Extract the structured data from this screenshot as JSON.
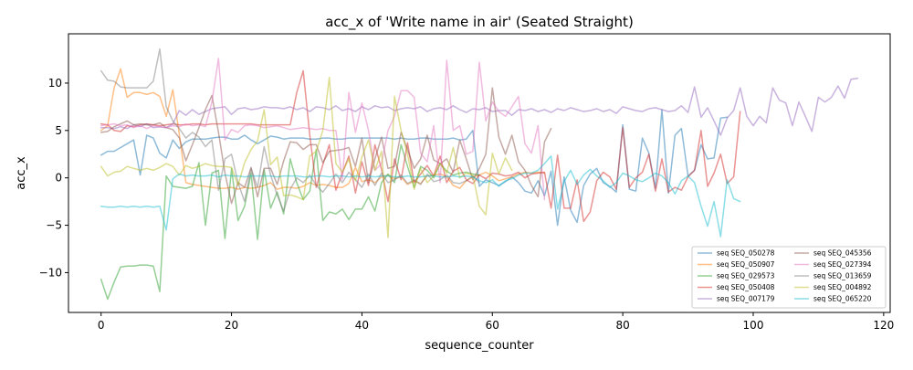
{
  "chart_data": {
    "type": "line",
    "title": "acc_x of 'Write name in air' (Seated Straight)",
    "xlabel": "sequence_counter",
    "ylabel": "acc_x",
    "xlim": [
      -5,
      121
    ],
    "ylim": [
      -14.2,
      15.2
    ],
    "xticks": [
      0,
      20,
      40,
      60,
      80,
      100,
      120
    ],
    "yticks": [
      -10,
      -5,
      0,
      5,
      10
    ],
    "grid": false,
    "legend_placement": "lower-right",
    "legend_columns": 2,
    "series": [
      {
        "name": "seq SEQ_050278",
        "color": "#1f77b4",
        "values": [
          2.4,
          2.8,
          2.8,
          3.2,
          3.6,
          4.0,
          0.3,
          4.5,
          4.2,
          2.6,
          2.1,
          4.0,
          3.1,
          3.8,
          4.1,
          4.1,
          4.1,
          4.2,
          4.3,
          4.3,
          4.1,
          4.1,
          4.5,
          4.0,
          3.6,
          4.0,
          4.4,
          4.3,
          4.1,
          4.2,
          4.2,
          4.2,
          4.1,
          4.1,
          4.2,
          4.2,
          4.1,
          4.1,
          4.2,
          4.2,
          4.2,
          4.2,
          4.2,
          4.2,
          4.2,
          4.1,
          4.2,
          4.1,
          4.1,
          4.2,
          4.2,
          4.1,
          4.1,
          4.1,
          4.2,
          4.0,
          4.1,
          5.0,
          -0.9,
          -0.2,
          -0.5,
          -0.8,
          -0.4,
          0.1,
          -0.5,
          -1.4,
          -1.6,
          -0.3,
          -1.9,
          0.7,
          -5.0,
          0.1,
          -3.4,
          -4.7,
          -0.8,
          0.4,
          1.0,
          -0.5,
          -0.9,
          -1.5,
          5.6,
          -1.2,
          -1.4,
          4.2,
          2.6,
          -1.1,
          7.2,
          -1.6,
          4.5,
          5.2,
          0.2,
          0.8,
          3.5,
          2.0,
          2.1,
          6.3,
          6.4
        ]
      },
      {
        "name": "seq SEQ_050907",
        "color": "#ff7f0e",
        "values": [
          5.0,
          5.5,
          9.5,
          11.5,
          8.5,
          9.0,
          9.0,
          8.8,
          9.0,
          8.6,
          6.5,
          9.3,
          4.6,
          -0.5,
          -0.7,
          -0.8,
          -0.9,
          -1.0,
          -1.1,
          -1.1,
          -1.0,
          -1.2,
          -1.0,
          -1.1,
          -1.0,
          -0.8,
          -0.5,
          -1.2,
          -1.0,
          -1.0,
          -1.1,
          -0.9,
          -0.5,
          -0.8,
          -0.7,
          -0.8,
          -1.0,
          -1.0,
          -0.6,
          1.1,
          -0.4,
          -0.2,
          -0.5,
          0.1,
          0.3,
          -0.1,
          0.1,
          -0.7,
          -0.3,
          -0.6,
          0.2,
          0.3,
          0.4,
          0.1,
          -0.8,
          -1.1,
          -0.3,
          0.1,
          0.3,
          0.6,
          0.2,
          -0.3,
          -0.1,
          0.1,
          0.4,
          0.6,
          0.5,
          0.6,
          0.5
        ]
      },
      {
        "name": "seq SEQ_029573",
        "color": "#2ca02c",
        "values": [
          -10.7,
          -12.8,
          -11.0,
          -9.4,
          -9.3,
          -9.3,
          -9.2,
          -9.2,
          -9.3,
          -12.0,
          0.2,
          -0.9,
          -1.0,
          -1.1,
          -0.9,
          1.6,
          -5.0,
          0.5,
          0.8,
          -6.4,
          1.0,
          -4.5,
          -3.0,
          0.5,
          -6.5,
          0.9,
          -3.2,
          -1.5,
          -3.8,
          2.0,
          -0.5,
          -2.3,
          -1.4,
          3.0,
          -4.5,
          -3.6,
          -3.8,
          -3.3,
          -4.4,
          -3.3,
          -3.3,
          -2.0,
          -3.5,
          -0.5,
          0.4,
          -0.5,
          3.5,
          1.2,
          -1.0,
          1.2,
          0.8,
          0.0,
          1.5,
          0.7,
          0.3,
          0.5,
          0.6,
          0.4,
          0.3
        ]
      },
      {
        "name": "seq SEQ_050408",
        "color": "#d62728",
        "values": [
          5.7,
          5.6,
          5.0,
          4.9,
          5.5,
          5.4,
          5.6,
          5.7,
          5.6,
          5.5,
          5.6,
          5.7,
          5.6,
          5.6,
          5.7,
          5.7,
          5.6,
          5.7,
          5.7,
          5.7,
          5.7,
          5.7,
          5.7,
          5.7,
          5.6,
          5.6,
          5.6,
          5.6,
          5.6,
          5.6,
          9.0,
          11.3,
          4.5,
          -1.0,
          1.4,
          3.5,
          -1.3,
          0.5,
          2.3,
          -1.6,
          1.7,
          -0.8,
          3.5,
          0.9,
          -2.5,
          2.0,
          -0.2,
          3.7,
          -0.5,
          0.4,
          1.3,
          0.2,
          2.3,
          -0.5,
          0.7,
          1.1,
          -0.2,
          -0.6,
          0.3,
          -0.1,
          0.5,
          0.4,
          0.2,
          0.3,
          0.6,
          0.0,
          0.4,
          0.5,
          0.6,
          -3.2,
          2.4,
          -3.2,
          -3.2,
          -0.2,
          -4.6,
          -3.6,
          -0.3,
          0.6,
          0.1,
          -1.2,
          5.3,
          -1.0,
          0.0,
          0.6,
          2.5,
          -1.4,
          2.0,
          -1.5,
          -1.0,
          -1.3,
          0.1,
          0.8,
          5.0,
          -0.9,
          0.5,
          2.5,
          -0.6,
          0.1,
          7.0
        ]
      },
      {
        "name": "seq SEQ_007179",
        "color": "#9467bd",
        "values": [
          5.3,
          5.3,
          5.2,
          5.4,
          5.2,
          5.6,
          5.4,
          5.7,
          5.3,
          5.4,
          5.3,
          5.7,
          7.1,
          6.6,
          7.2,
          6.7,
          7.0,
          7.3,
          7.4,
          7.5,
          6.7,
          7.3,
          7.4,
          7.2,
          7.3,
          7.5,
          7.4,
          7.4,
          7.3,
          7.5,
          7.2,
          7.4,
          7.0,
          7.5,
          7.4,
          7.2,
          7.6,
          7.1,
          7.3,
          7.0,
          7.5,
          7.2,
          7.6,
          7.4,
          7.5,
          7.1,
          7.3,
          7.4,
          7.3,
          7.5,
          7.0,
          7.3,
          7.4,
          7.2,
          7.6,
          7.2,
          6.9,
          7.3,
          7.2,
          7.4,
          7.0,
          7.1,
          7.1,
          6.6,
          7.2,
          7.1,
          7.3,
          7.0,
          7.2,
          6.9,
          7.3,
          7.1,
          7.4,
          7.2,
          7.0,
          7.1,
          7.3,
          7.0,
          7.2,
          6.8,
          7.5,
          7.3,
          7.1,
          7.0,
          7.3,
          7.4,
          7.2,
          7.0,
          7.1,
          7.6,
          6.9,
          9.6,
          6.4,
          7.4,
          6.0,
          4.5,
          6.3,
          7.1,
          9.5,
          6.5,
          5.5,
          6.5,
          5.8,
          9.5,
          8.2,
          7.9,
          5.5,
          8.0,
          6.5,
          4.9,
          8.5,
          8.0,
          8.5,
          9.7,
          8.4,
          10.4,
          10.5
        ]
      },
      {
        "name": "seq SEQ_045356",
        "color": "#8c564b",
        "values": [
          4.8,
          4.9,
          5.4,
          5.7,
          6.0,
          5.6,
          5.7,
          5.6,
          5.6,
          5.8,
          5.3,
          5.1,
          4.2,
          1.8,
          3.5,
          5.3,
          7.2,
          8.7,
          4.8,
          0.5,
          -2.7,
          -0.5,
          -1.0,
          1.1,
          -2.0,
          1.0,
          1.0,
          -0.7,
          1.8,
          3.8,
          3.7,
          3.0,
          3.5,
          3.5,
          1.6,
          2.8,
          2.9,
          3.0,
          3.2,
          1.2,
          4.2,
          -0.5,
          2.0,
          4.3,
          1.0,
          1.2,
          4.8,
          3.0,
          1.0,
          2.0,
          4.5,
          1.9,
          1.5,
          2.0,
          0.6,
          4.0,
          2.0,
          -0.2,
          1.0,
          2.5,
          9.5,
          4.3,
          2.5,
          4.5,
          1.7,
          0.8,
          -0.8,
          -2.0,
          3.8,
          5.2
        ]
      },
      {
        "name": "seq SEQ_027394",
        "color": "#e377c2",
        "values": [
          5.5,
          5.6,
          5.7,
          5.5,
          5.6,
          5.3,
          5.5,
          5.2,
          5.5,
          5.4,
          5.3,
          5.5,
          5.4,
          5.7,
          5.5,
          5.6,
          5.4,
          8.0,
          12.6,
          4.0,
          5.1,
          4.8,
          5.5,
          5.6,
          5.5,
          5.3,
          5.4,
          5.5,
          5.3,
          5.1,
          5.2,
          5.3,
          5.2,
          5.1,
          5.2,
          5.0,
          5.0,
          -0.2,
          9.0,
          4.8,
          7.9,
          5.0,
          0.8,
          1.5,
          5.0,
          6.5,
          9.2,
          9.2,
          8.5,
          2.6,
          1.7,
          5.5,
          -0.5,
          12.4,
          5.0,
          5.5,
          2.5,
          2.8,
          12.2,
          6.0,
          8.0,
          7.0,
          6.5,
          7.5,
          8.6,
          3.6,
          2.6,
          5.5,
          -2.3
        ]
      },
      {
        "name": "seq SEQ_013659",
        "color": "#7f7f7f",
        "values": [
          11.3,
          10.3,
          10.2,
          9.6,
          9.5,
          9.5,
          9.5,
          9.5,
          10.2,
          13.6,
          7.5,
          6.0,
          5.2,
          4.2,
          4.8,
          4.3,
          3.3,
          4.0,
          -1.3,
          2.0,
          2.5,
          -0.5,
          -2.5,
          1.0,
          -1.0,
          3.3,
          0.3,
          -1.8,
          -3.5,
          -1.2,
          0.0,
          -0.5,
          0.3,
          -0.8,
          -1.5,
          -0.6,
          0.4,
          -0.5,
          0.6,
          -0.2,
          -1.0,
          0.4,
          -0.8,
          0.5,
          -0.5,
          -0.2,
          0.3,
          -0.6,
          -0.2,
          -0.7,
          0.4,
          -0.4,
          -0.2,
          0.3,
          -0.5,
          -0.6,
          -0.3,
          0.2,
          -0.5
        ]
      },
      {
        "name": "seq SEQ_004892",
        "color": "#bcbd22",
        "values": [
          1.2,
          0.2,
          0.6,
          0.7,
          1.2,
          1.0,
          0.8,
          1.0,
          0.8,
          1.1,
          1.5,
          1.2,
          0.3,
          1.3,
          1.0,
          1.2,
          1.5,
          1.3,
          1.2,
          1.2,
          1.1,
          -0.8,
          1.6,
          3.0,
          3.9,
          7.2,
          1.4,
          2.2,
          -1.9,
          -1.8,
          -2.0,
          -2.3,
          2.3,
          2.8,
          5.0,
          10.6,
          1.5,
          0.6,
          2.0,
          -0.3,
          2.2,
          4.0,
          0.8,
          2.8,
          -6.3,
          8.6,
          5.0,
          2.5,
          -1.2,
          1.0,
          -0.5,
          0.2,
          1.5,
          0.5,
          3.2,
          0.0,
          0.5,
          0.3,
          -3.0,
          -3.9,
          2.6,
          0.4,
          2.1,
          0.8
        ]
      },
      {
        "name": "seq SEQ_065220",
        "color": "#17becf",
        "values": [
          -3.0,
          -3.1,
          -3.1,
          -3.0,
          -3.1,
          -3.0,
          -3.1,
          -3.0,
          -3.1,
          -3.0,
          -5.5,
          -0.1,
          0.4,
          0.2,
          0.3,
          0.2,
          0.2,
          0.3,
          0.1,
          0.3,
          0.2,
          0.2,
          0.1,
          0.2,
          0.2,
          0.2,
          0.2,
          0.1,
          0.2,
          0.2,
          0.2,
          0.1,
          0.1,
          0.2,
          0.2,
          0.1,
          0.2,
          0.2,
          0.1,
          0.2,
          0.1,
          0.2,
          0.1,
          0.2,
          0.2,
          0.1,
          0.1,
          0.2,
          0.1,
          0.1,
          0.2,
          0.2,
          0.1,
          0.1,
          0.2,
          0.1,
          0.2,
          0.1,
          -0.3,
          -0.5,
          -0.2,
          -0.9,
          -0.3,
          -0.1,
          0.3,
          0.5,
          0.5,
          0.8,
          1.5,
          2.3,
          -3.3,
          -0.4,
          0.8,
          -0.7,
          0.3,
          0.9,
          0.2,
          -0.3,
          -1.0,
          -0.5,
          0.5,
          0.2,
          -0.2,
          -0.4,
          0.0,
          0.5,
          0.2,
          -0.5,
          -1.7,
          -0.3,
          0.2,
          -0.5,
          -3.0,
          -5.1,
          -2.5,
          -6.2,
          -0.2,
          -2.2,
          -2.5
        ]
      }
    ]
  }
}
